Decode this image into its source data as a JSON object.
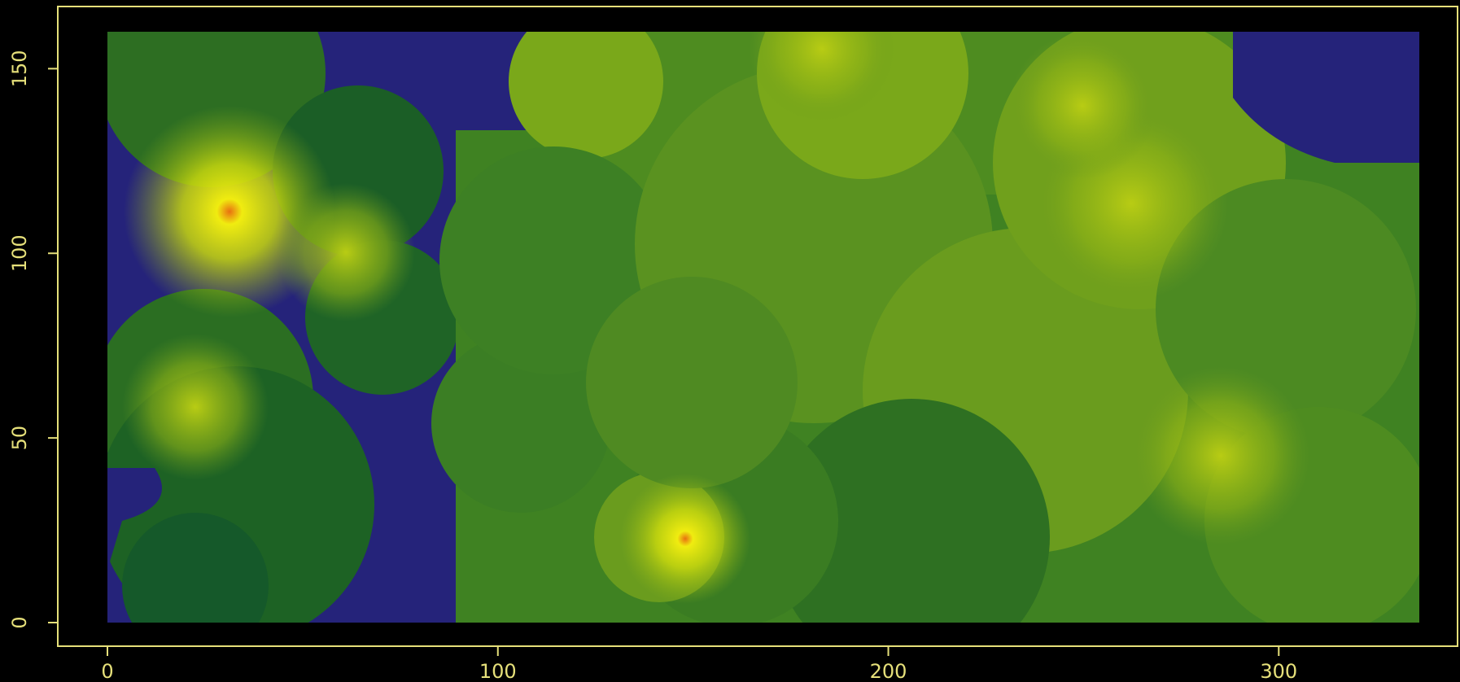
{
  "chart_data": {
    "type": "heatmap",
    "title": "",
    "xlabel": "",
    "ylabel": "",
    "xlim": [
      0,
      336
    ],
    "ylim": [
      0,
      160
    ],
    "x_ticks": [
      0,
      100,
      200,
      300
    ],
    "y_ticks": [
      0,
      50,
      100,
      150
    ],
    "x_tick_labels": [
      "0",
      "100",
      "200",
      "300"
    ],
    "y_tick_labels": [
      "0",
      "50",
      "100",
      "150"
    ],
    "colormap": [
      "#25237a",
      "#0f5a2a",
      "#2d7a22",
      "#5f9620",
      "#8fb316",
      "#c8d80e",
      "#f0ec10",
      "#e87010"
    ],
    "background_fill": "#25237a",
    "hotspots": [
      {
        "x": 32,
        "y": 100,
        "level": 1.0
      },
      {
        "x": 148,
        "y": 23,
        "level": 0.95
      },
      {
        "x": 263,
        "y": 115,
        "level": 0.55
      },
      {
        "x": 182,
        "y": 155,
        "level": 0.5
      },
      {
        "x": 250,
        "y": 140,
        "level": 0.45
      },
      {
        "x": 305,
        "y": 30,
        "level": 0.35
      }
    ],
    "grid": false,
    "legend": "none",
    "axis_color": "#e6e07a",
    "frame_color": "#e6e07a"
  }
}
